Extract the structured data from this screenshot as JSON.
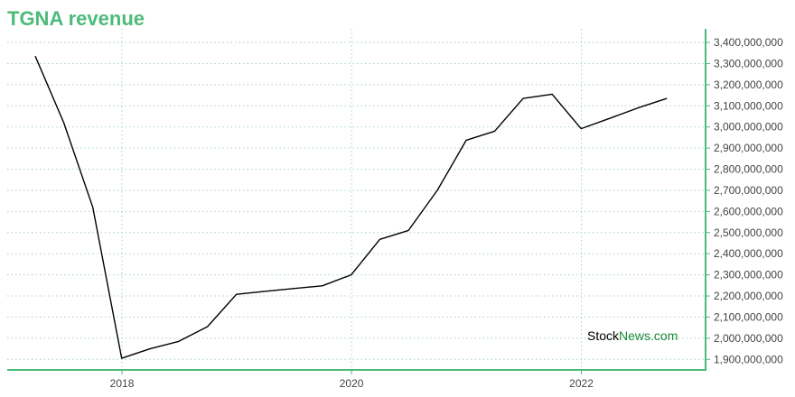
{
  "chart_data": {
    "type": "line",
    "title": "TGNA revenue",
    "xlabel": "",
    "ylabel": "",
    "x_ticks": [
      "2018",
      "2020",
      "2022"
    ],
    "y_ticks": [
      "1,900,000,000",
      "2,000,000,000",
      "2,100,000,000",
      "2,200,000,000",
      "2,300,000,000",
      "2,400,000,000",
      "2,500,000,000",
      "2,600,000,000",
      "2,700,000,000",
      "2,800,000,000",
      "2,900,000,000",
      "3,000,000,000",
      "3,100,000,000",
      "3,200,000,000",
      "3,300,000,000",
      "3,400,000,000"
    ],
    "ylim": [
      1850000000,
      3430000000
    ],
    "xlim": [
      "2017-01-01",
      "2023-01-31"
    ],
    "grid": true,
    "series": [
      {
        "color": "#000000",
        "points": [
          {
            "x": "2017-03-31",
            "y": 3335000000
          },
          {
            "x": "2017-06-30",
            "y": 3020000000
          },
          {
            "x": "2017-09-30",
            "y": 2620000000
          },
          {
            "x": "2017-12-31",
            "y": 1905000000
          },
          {
            "x": "2018-03-31",
            "y": 1950000000
          },
          {
            "x": "2018-06-30",
            "y": 1985000000
          },
          {
            "x": "2018-09-30",
            "y": 2055000000
          },
          {
            "x": "2018-12-31",
            "y": 2208000000
          },
          {
            "x": "2019-03-31",
            "y": 2222000000
          },
          {
            "x": "2019-06-30",
            "y": 2235000000
          },
          {
            "x": "2019-09-30",
            "y": 2248000000
          },
          {
            "x": "2019-12-31",
            "y": 2300000000
          },
          {
            "x": "2020-03-31",
            "y": 2468000000
          },
          {
            "x": "2020-06-30",
            "y": 2510000000
          },
          {
            "x": "2020-09-30",
            "y": 2700000000
          },
          {
            "x": "2020-12-31",
            "y": 2937000000
          },
          {
            "x": "2021-03-31",
            "y": 2980000000
          },
          {
            "x": "2021-06-30",
            "y": 3135000000
          },
          {
            "x": "2021-09-30",
            "y": 3155000000
          },
          {
            "x": "2021-12-31",
            "y": 2992000000
          },
          {
            "x": "2022-03-31",
            "y": 3040000000
          },
          {
            "x": "2022-06-30",
            "y": 3090000000
          },
          {
            "x": "2022-09-30",
            "y": 3135000000
          }
        ]
      }
    ],
    "colors": {
      "title": "#4cbb7a",
      "axis": "#4cbb7a",
      "grid": "#a8d5b8",
      "line": "#000000"
    }
  },
  "watermark": {
    "part1": "Stock",
    "part2": "News.com"
  }
}
